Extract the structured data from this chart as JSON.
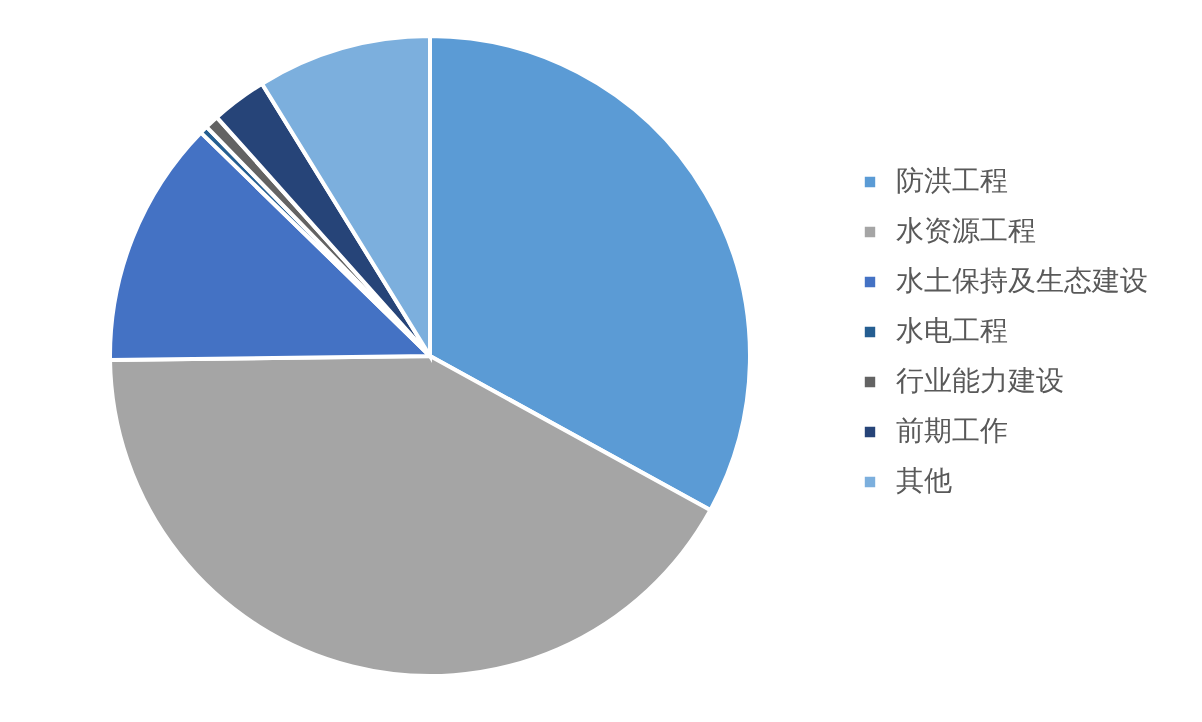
{
  "chart_data": {
    "type": "pie",
    "categories": [
      "防洪工程",
      "水资源工程",
      "水土保持及生态建设",
      "水电工程",
      "行业能力建设",
      "前期工作",
      "其他"
    ],
    "values": [
      33.0,
      41.8,
      12.5,
      0.4,
      0.7,
      2.8,
      8.8
    ],
    "colors": [
      "#5b9bd5",
      "#a5a5a5",
      "#4472c4",
      "#255e91",
      "#636363",
      "#264478",
      "#7cafdd"
    ],
    "legend": "right"
  }
}
